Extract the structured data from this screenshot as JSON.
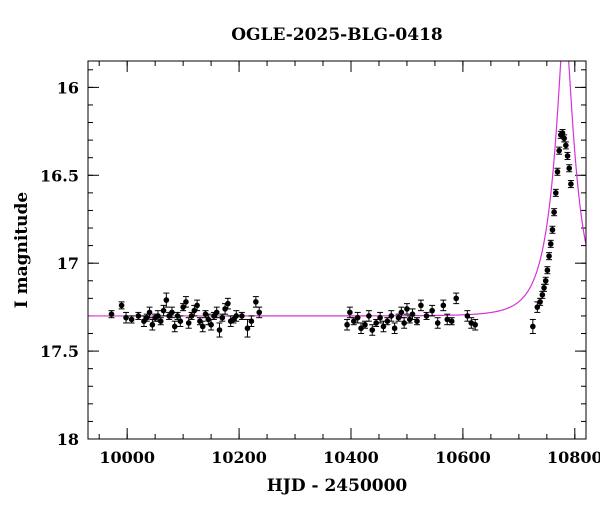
{
  "chart_data": {
    "type": "scatter",
    "title": "OGLE-2025-BLG-0418",
    "xlabel": "HJD - 2450000",
    "ylabel": "I magnitude",
    "xlim": [
      9930,
      10820
    ],
    "ylim": [
      18.0,
      15.85
    ],
    "y_inverted": true,
    "x_ticks": [
      10000,
      10200,
      10400,
      10600,
      10800
    ],
    "x_tick_labels": [
      "10000",
      "10200",
      "10400",
      "10600",
      "10800"
    ],
    "y_ticks": [
      16,
      16.5,
      17,
      17.5,
      18
    ],
    "y_tick_labels": [
      "16",
      "16.5",
      "17",
      "17.5",
      "18"
    ],
    "x_minor_step": 50,
    "y_minor_step": 0.1,
    "grid": false,
    "legend": "none",
    "colors": {
      "data": "#000000",
      "model": "#d633d6"
    },
    "series": [
      {
        "kind": "points_with_errorbars",
        "x": [
          9972,
          9990,
          9998,
          10008,
          10020,
          10030,
          10035,
          10040,
          10045,
          10050,
          10055,
          10060,
          10065,
          10070,
          10075,
          10080,
          10085,
          10090,
          10095,
          10100,
          10105,
          10110,
          10115,
          10120,
          10125,
          10130,
          10135,
          10140,
          10145,
          10150,
          10155,
          10160,
          10165,
          10170,
          10175,
          10180,
          10185,
          10190,
          10195,
          10205,
          10215,
          10222,
          10230,
          10236,
          10393,
          10398,
          10405,
          10412,
          10418,
          10425,
          10432,
          10438,
          10445,
          10452,
          10458,
          10465,
          10472,
          10478,
          10485,
          10490,
          10495,
          10500,
          10505,
          10510,
          10518,
          10525,
          10535,
          10545,
          10555,
          10565,
          10572,
          10580,
          10588,
          10608,
          10615,
          10622,
          10725,
          10733,
          10738,
          10742,
          10745,
          10748,
          10751,
          10754,
          10757,
          10760,
          10763,
          10766,
          10769,
          10772,
          10775,
          10778,
          10781,
          10784,
          10787,
          10790,
          10793
        ],
        "y": [
          17.29,
          17.24,
          17.31,
          17.32,
          17.3,
          17.33,
          17.31,
          17.28,
          17.35,
          17.31,
          17.3,
          17.33,
          17.27,
          17.21,
          17.3,
          17.28,
          17.36,
          17.3,
          17.33,
          17.25,
          17.22,
          17.34,
          17.3,
          17.27,
          17.24,
          17.33,
          17.36,
          17.29,
          17.32,
          17.35,
          17.3,
          17.28,
          17.38,
          17.31,
          17.26,
          17.23,
          17.33,
          17.32,
          17.3,
          17.3,
          17.37,
          17.33,
          17.22,
          17.28,
          17.35,
          17.28,
          17.33,
          17.31,
          17.37,
          17.35,
          17.3,
          17.38,
          17.34,
          17.31,
          17.36,
          17.33,
          17.3,
          17.37,
          17.31,
          17.28,
          17.34,
          17.26,
          17.32,
          17.29,
          17.33,
          17.24,
          17.3,
          17.27,
          17.34,
          17.24,
          17.32,
          17.33,
          17.2,
          17.3,
          17.34,
          17.35,
          17.36,
          17.25,
          17.22,
          17.18,
          17.14,
          17.1,
          17.04,
          16.96,
          16.89,
          16.81,
          16.71,
          16.6,
          16.48,
          16.36,
          16.27,
          16.26,
          16.29,
          16.33,
          16.39,
          16.46,
          16.55
        ],
        "yerr": [
          0.02,
          0.02,
          0.03,
          0.02,
          0.02,
          0.03,
          0.02,
          0.03,
          0.03,
          0.02,
          0.03,
          0.02,
          0.03,
          0.04,
          0.02,
          0.03,
          0.03,
          0.02,
          0.03,
          0.02,
          0.03,
          0.03,
          0.02,
          0.03,
          0.03,
          0.02,
          0.03,
          0.02,
          0.03,
          0.03,
          0.02,
          0.03,
          0.04,
          0.02,
          0.03,
          0.03,
          0.03,
          0.02,
          0.03,
          0.02,
          0.05,
          0.03,
          0.03,
          0.03,
          0.03,
          0.03,
          0.02,
          0.03,
          0.03,
          0.02,
          0.03,
          0.03,
          0.02,
          0.03,
          0.03,
          0.02,
          0.03,
          0.03,
          0.02,
          0.03,
          0.03,
          0.03,
          0.02,
          0.03,
          0.02,
          0.03,
          0.02,
          0.03,
          0.03,
          0.03,
          0.03,
          0.02,
          0.03,
          0.03,
          0.03,
          0.03,
          0.04,
          0.03,
          0.02,
          0.02,
          0.02,
          0.02,
          0.02,
          0.02,
          0.02,
          0.02,
          0.02,
          0.02,
          0.02,
          0.02,
          0.02,
          0.02,
          0.02,
          0.02,
          0.02,
          0.02,
          0.02
        ]
      },
      {
        "kind": "model_curve",
        "baseline": 17.3,
        "t0": 10782,
        "tE": 45,
        "u0": 0.22
      }
    ]
  }
}
